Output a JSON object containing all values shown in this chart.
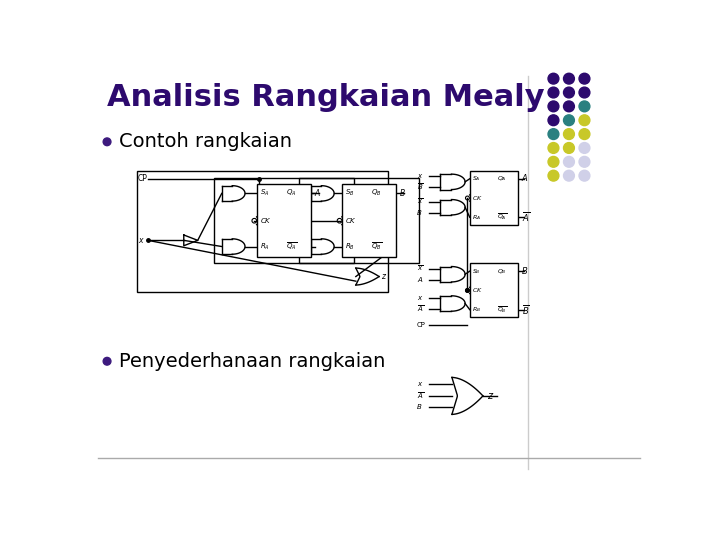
{
  "title": "Analisis Rangkaian Mealy",
  "title_color": "#2d0a6e",
  "title_fontsize": 22,
  "bullet1": "Contoh rangkaian",
  "bullet2": "Penyederhanaan rangkaian",
  "bullet_fontsize": 14,
  "bullet_color": "#000000",
  "bullet_dot_color": "#3d1a7e",
  "background_color": "#ffffff",
  "bottom_line_color": "#aaaaaa",
  "dot_grid_colors": [
    [
      "#2d0a6e",
      "#2d0a6e",
      "#2d0a6e"
    ],
    [
      "#2d0a6e",
      "#2d0a6e",
      "#2d0a6e"
    ],
    [
      "#2d0a6e",
      "#2d0a6e",
      "#2a8080"
    ],
    [
      "#2d0a6e",
      "#2a8080",
      "#c8c828"
    ],
    [
      "#2a8080",
      "#c8c828",
      "#c8c828"
    ],
    [
      "#c8c828",
      "#c8c828",
      "#d0d0e8"
    ],
    [
      "#c8c828",
      "#d0d0e8",
      "#d0d0e8"
    ],
    [
      "#c8c828",
      "#d0d0e8",
      "#d0d0e8"
    ]
  ]
}
